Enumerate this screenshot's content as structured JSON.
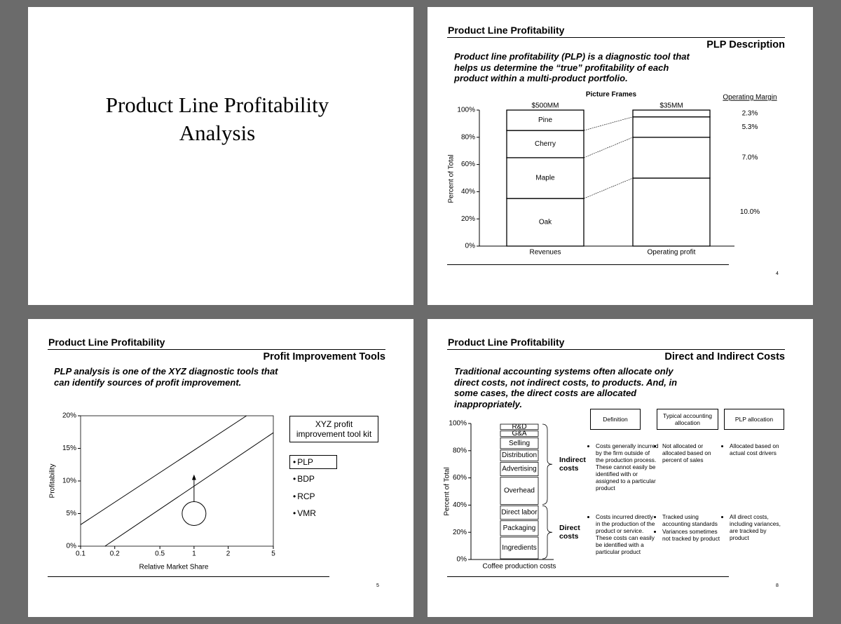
{
  "slides": [
    {
      "title_lines": [
        "Product Line Profitability",
        "Analysis"
      ]
    },
    {
      "header": "Product Line Profitability",
      "subtitle": "PLP Description",
      "lead": "Product line profitability (PLP) is a diagnostic tool that helps us determine the “true” profitability of each product within a multi-product portfolio.",
      "page": 4,
      "chart_data": {
        "type": "bar",
        "stacked": true,
        "title": "Picture Frames",
        "y_label": "Percent of Total",
        "categories": [
          "Revenues",
          "Operating profit"
        ],
        "category_totals": [
          "$500MM",
          "$35MM"
        ],
        "color": "#ffffff",
        "ylim": [
          0,
          100
        ],
        "yticks": [
          {
            "value": 0,
            "label": "0%"
          },
          {
            "value": 20,
            "label": "20%"
          },
          {
            "value": 40,
            "label": "40%"
          },
          {
            "value": 60,
            "label": "60%"
          },
          {
            "value": 80,
            "label": "80%"
          },
          {
            "value": 100,
            "label": "100%"
          }
        ],
        "margin_header": "Operating Margin",
        "series": [
          {
            "name": "Oak",
            "values": [
              35,
              50
            ],
            "margin": 10.0,
            "margin_label": "10.0%"
          },
          {
            "name": "Maple",
            "values": [
              30,
              30
            ],
            "margin": 7.0,
            "margin_label": "7.0%"
          },
          {
            "name": "Cherry",
            "values": [
              20,
              15
            ],
            "margin": 5.3,
            "margin_label": "5.3%"
          },
          {
            "name": "Pine",
            "values": [
              15,
              5
            ],
            "margin": 2.3,
            "margin_label": "2.3%"
          }
        ]
      }
    },
    {
      "header": "Product Line Profitability",
      "subtitle": "Profit Improvement Tools",
      "lead": "PLP analysis is one of the XYZ diagnostic tools that can identify sources of profit improvement.",
      "page": 5,
      "chart_data": {
        "type": "line",
        "x_label": "Relative Market Share",
        "y_label": "Profitability",
        "x_log": true,
        "xlim": [
          0.1,
          5
        ],
        "xticks": [
          0.1,
          0.2,
          0.5,
          1,
          2,
          5
        ],
        "ylim": [
          0,
          20
        ],
        "yticks": [
          {
            "value": 0,
            "label": "0%"
          },
          {
            "value": 5,
            "label": "5%"
          },
          {
            "value": 10,
            "label": "10%"
          },
          {
            "value": 15,
            "label": "15%"
          },
          {
            "value": 20,
            "label": "20%"
          }
        ],
        "series": [
          {
            "x": [
              0.1,
              2.9
            ],
            "values": [
              3.3,
              20
            ]
          },
          {
            "x": [
              0.164,
              5
            ],
            "values": [
              0,
              17.4
            ]
          }
        ],
        "marker": {
          "x": 1,
          "y": 5,
          "arrow_to": 11
        }
      },
      "toolkit": {
        "title": "XYZ profit improvement tool kit",
        "items": [
          "PLP",
          "BDP",
          "RCP",
          "VMR"
        ]
      }
    },
    {
      "header": "Product Line Profitability",
      "subtitle": "Direct and Indirect Costs",
      "lead": "Traditional accounting systems often allocate only direct costs, not indirect costs, to products.  And, in some cases, the direct costs are allocated inappropriately.",
      "page": 8,
      "chart_data": {
        "type": "bar",
        "stacked": true,
        "y_label": "Percent of Total",
        "categories": [
          "Coffee production costs"
        ],
        "color": "#ffffff",
        "ylim": [
          0,
          100
        ],
        "yticks": [
          {
            "value": 0,
            "label": "0%"
          },
          {
            "value": 20,
            "label": "20%"
          },
          {
            "value": 40,
            "label": "40%"
          },
          {
            "value": 60,
            "label": "60%"
          },
          {
            "value": 80,
            "label": "80%"
          },
          {
            "value": 100,
            "label": "100%"
          }
        ],
        "groups": [
          {
            "label": "Direct costs",
            "series": [
              {
                "name": "Ingredients",
                "values": [
                  17
                ]
              },
              {
                "name": "Packaging",
                "values": [
                  12
                ]
              },
              {
                "name": "Direct labor",
                "values": [
                  11
                ]
              }
            ]
          },
          {
            "label": "Indirect costs",
            "series": [
              {
                "name": "Overhead",
                "values": [
                  21
                ]
              },
              {
                "name": "Advertising",
                "values": [
                  11
                ]
              },
              {
                "name": "Distribution",
                "values": [
                  9
                ]
              },
              {
                "name": "Selling",
                "values": [
                  9
                ]
              },
              {
                "name": "G&A",
                "values": [
                  5
                ]
              },
              {
                "name": "R&D",
                "values": [
                  5
                ]
              }
            ]
          }
        ]
      },
      "table": {
        "header": [
          "Definition",
          "Typical accounting allocation",
          "PLP allocation"
        ],
        "rows": [
          [
            [
              "Costs generally incurred by the firm outside of the production process. These cannot easily be identified with or assigned to a particular product"
            ],
            [
              "Not allocated or allocated based on percent of sales"
            ],
            [
              "Allocated based on actual cost drivers"
            ]
          ],
          [
            [
              "Costs incurred directly in the production of the product or service. These costs can easily be identified with a particular product"
            ],
            [
              "Tracked using accounting standards",
              "Variances sometimes not tracked by product"
            ],
            [
              "All direct costs, including variances, are tracked by product"
            ]
          ]
        ]
      }
    }
  ]
}
